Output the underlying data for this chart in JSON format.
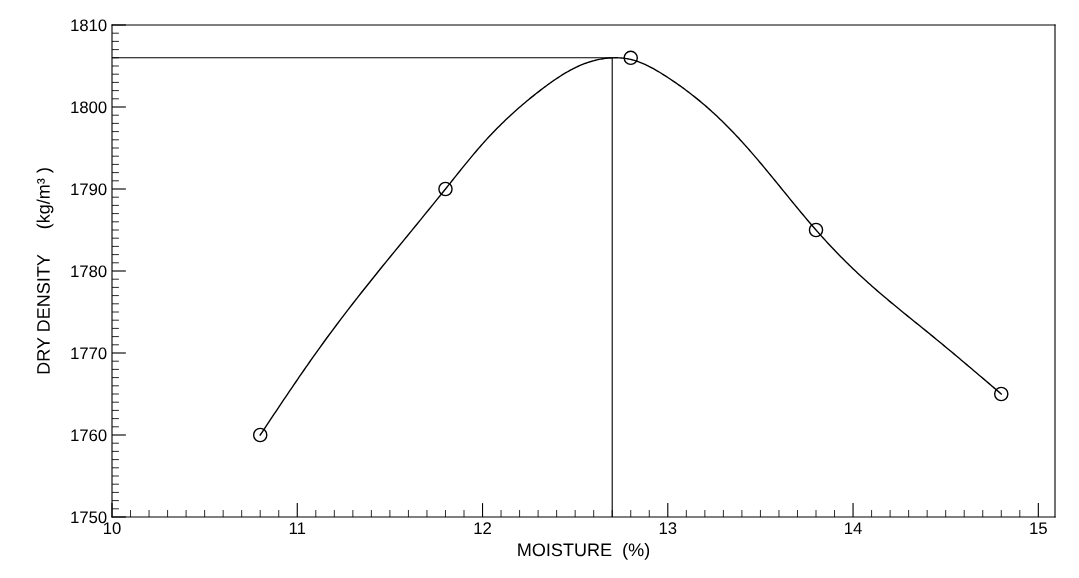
{
  "chart_data": {
    "type": "line",
    "xlabel": "MOISTURE  (%)",
    "ylabel": "DRY DENSITY     (kg/m³ )",
    "xlim": [
      10,
      15.09
    ],
    "xticks": [
      10,
      11,
      12,
      13,
      14,
      15
    ],
    "ylim": [
      1750,
      1810
    ],
    "yticks": [
      1750,
      1760,
      1770,
      1780,
      1790,
      1800,
      1810
    ],
    "grid": false,
    "legend": false,
    "marker": "none",
    "line_style": "solid",
    "series": [
      {
        "color": "#000000",
        "x": [
          10.8,
          11.12,
          11.8,
          12.0,
          12.31,
          12.51,
          12.71,
          12.8,
          13.0,
          13.25,
          13.45,
          13.8,
          14.07,
          14.41,
          14.8
        ],
        "values": [
          1760,
          1770.6,
          1790,
          1795.5,
          1802,
          1804.9,
          1806,
          1805.8,
          1803.6,
          1799.2,
          1794.5,
          1785,
          1778.8,
          1772.4,
          1765
        ]
      },
      {
        "type": "scatter",
        "marker": "circle",
        "color": "#000000",
        "x": [
          10.8,
          11.8,
          12.8,
          13.8,
          14.8
        ],
        "values": [
          1760,
          1790,
          1806,
          1785,
          1765
        ]
      }
    ],
    "ref_lines": [
      {
        "axis": "y",
        "value": 1806,
        "color": "#000000"
      },
      {
        "axis": "x",
        "value": 12.7,
        "color": "#000000"
      }
    ]
  }
}
